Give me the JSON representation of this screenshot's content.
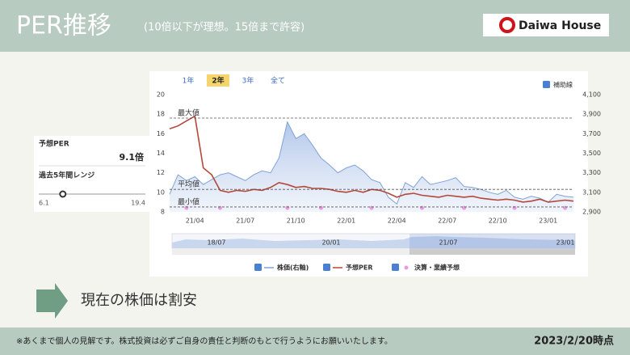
{
  "header": {
    "title": "PER推移",
    "subtitle": "(10倍以下が理想。15倍まで許容)",
    "logo": "Daiwa House"
  },
  "side_panel": {
    "per_label": "予想PER",
    "per_value": 9.1,
    "per_value_label": "9.1倍",
    "range_label": "過去5年間レンジ",
    "range_min": 6.1,
    "range_max": 19.4
  },
  "tabs": [
    "1年",
    "2年",
    "3年",
    "全て"
  ],
  "active_tab": 1,
  "aux_toggle": "補助線",
  "chart_data": {
    "type": "line",
    "categories": [
      null,
      null,
      null,
      "21/04",
      null,
      null,
      null,
      null,
      null,
      "21/07",
      null,
      null,
      null,
      null,
      null,
      "21/10",
      null,
      null,
      null,
      null,
      null,
      "22/01",
      null,
      null,
      null,
      null,
      null,
      "22/04",
      null,
      null,
      null,
      null,
      null,
      "22/07",
      null,
      null,
      null,
      null,
      null,
      "22/10",
      null,
      null,
      null,
      null,
      null,
      "23/01",
      null,
      null,
      null
    ],
    "series": [
      {
        "name": "株価(右軸)",
        "color": "#7fa2d8",
        "axis": "y2",
        "values": [
          3080,
          3280,
          3220,
          3260,
          3180,
          3230,
          3280,
          3300,
          3260,
          3220,
          3280,
          3320,
          3300,
          3450,
          3820,
          3650,
          3700,
          3580,
          3450,
          3380,
          3300,
          3350,
          3380,
          3320,
          3230,
          3200,
          3050,
          2980,
          3200,
          3150,
          3260,
          3180,
          3200,
          3220,
          3250,
          3160,
          3150,
          3130,
          3100,
          3080,
          3120,
          3050,
          3030,
          3060,
          3040,
          3000,
          3080,
          3060,
          3050
        ]
      },
      {
        "name": "予想PER",
        "color": "#b5473a",
        "values": [
          16.5,
          16.8,
          17.3,
          17.8,
          12.5,
          11.8,
          10.2,
          10.0,
          10.2,
          10.1,
          10.3,
          10.2,
          10.5,
          11.0,
          10.8,
          10.5,
          10.6,
          10.4,
          10.4,
          10.3,
          10.1,
          10.0,
          10.2,
          10.0,
          10.3,
          10.2,
          9.9,
          9.5,
          9.8,
          9.9,
          9.7,
          9.6,
          9.5,
          9.7,
          9.6,
          9.5,
          9.6,
          9.4,
          9.3,
          9.2,
          9.3,
          9.2,
          9.0,
          9.1,
          9.3,
          9.0,
          9.1,
          9.2,
          9.1
        ]
      },
      {
        "name": "決算・業績予想",
        "color": "#e89be0",
        "values": [
          null,
          null,
          8.4,
          null,
          null,
          null,
          8.4,
          null,
          null,
          null,
          null,
          null,
          null,
          null,
          8.4,
          null,
          null,
          null,
          8.4,
          null,
          null,
          null,
          null,
          null,
          8.4,
          null,
          null,
          null,
          null,
          null,
          8.4,
          null,
          null,
          null,
          null,
          8.4,
          null,
          null,
          null,
          null,
          null,
          8.4,
          null,
          null,
          null,
          null,
          null,
          8.4,
          null
        ]
      }
    ],
    "reference_lines": [
      {
        "label": "最大値",
        "value": 17.6
      },
      {
        "label": "平均値",
        "value": 10.3
      },
      {
        "label": "最小値",
        "value": 8.5
      }
    ],
    "ylim": [
      8,
      20
    ],
    "yticks": [
      8,
      10,
      12,
      14,
      16,
      18,
      20
    ],
    "y2lim": [
      2900,
      4100
    ],
    "y2ticks": [
      {
        "value": 2900,
        "label": "2,900"
      },
      {
        "value": 3100,
        "label": "3,100"
      },
      {
        "value": 3300,
        "label": "3,300"
      },
      {
        "value": 3500,
        "label": "3,500"
      },
      {
        "value": 3700,
        "label": "3,700"
      },
      {
        "value": 3900,
        "label": "3,900"
      },
      {
        "value": 4100,
        "label": "4,100"
      }
    ],
    "grid": false
  },
  "navigator": {
    "labels": [
      "18/07",
      "20/01",
      "21/07",
      "23/01"
    ]
  },
  "conclusion": "現在の株価は割安",
  "footer": {
    "note": "※あくまで個人の見解です。株式投資は必ずご自身の責任と判断のもとで行うようにお願いいたします。",
    "date": "2023/2/20時点"
  }
}
